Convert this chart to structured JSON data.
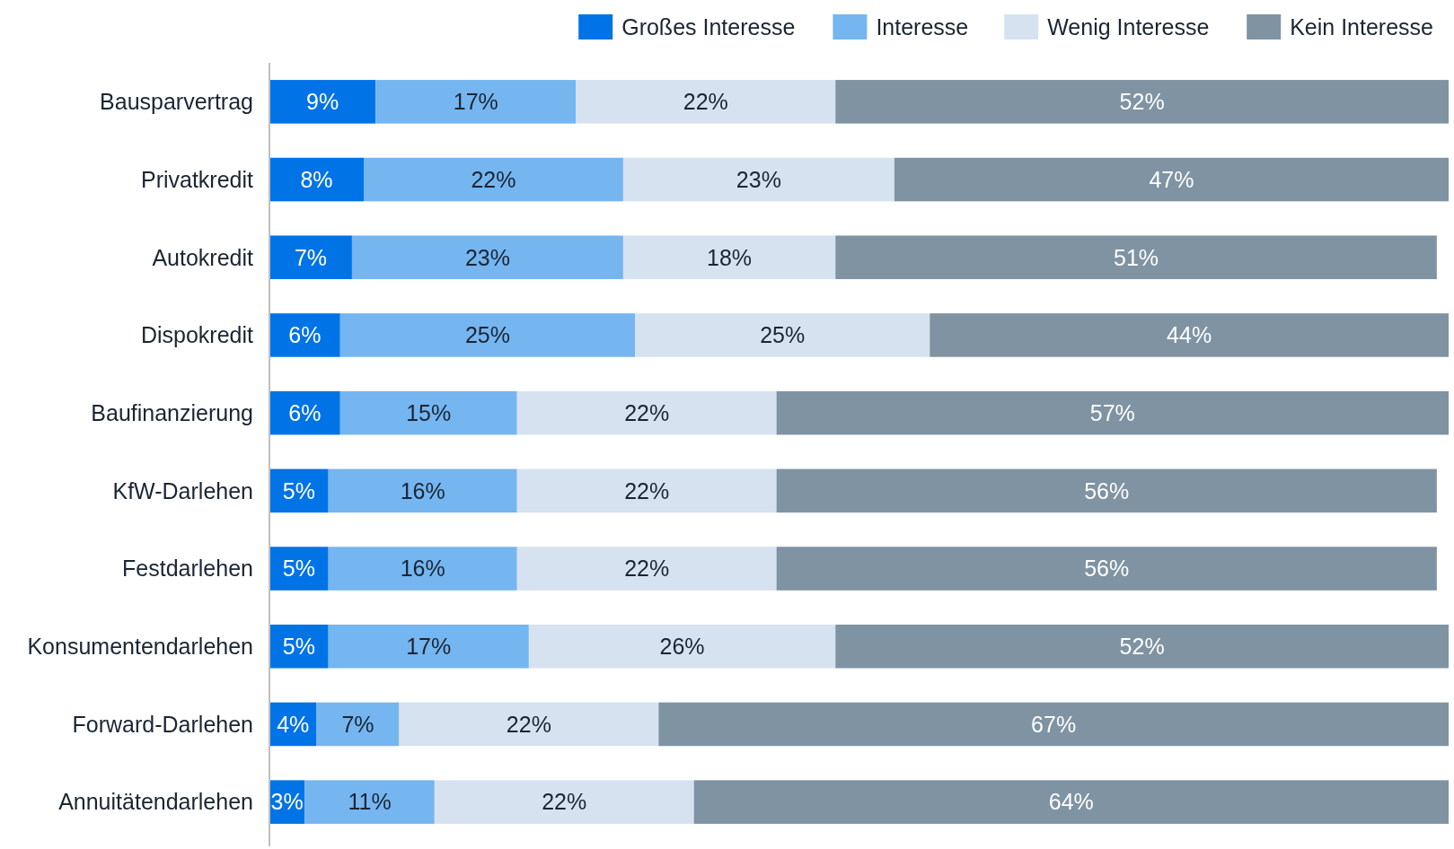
{
  "chart_data": {
    "type": "bar",
    "orientation": "horizontal",
    "stacked": true,
    "legend": "top right",
    "tick_labels": "y",
    "xlim": [
      0,
      100
    ],
    "categories": [
      "Bausparvertrag",
      "Privatkredit",
      "Autokredit",
      "Dispokredit",
      "Baufinanzierung",
      "KfW-Darlehen",
      "Festdarlehen",
      "Konsumentendarlehen",
      "Forward-Darlehen",
      "Annuitätendarlehen"
    ],
    "series": [
      {
        "name": "Großes Interesse",
        "color": "#0073e6",
        "values": [
          9,
          8,
          7,
          6,
          6,
          5,
          5,
          5,
          4,
          3
        ],
        "value_labels": [
          "9%",
          "8%",
          "7%",
          "6%",
          "6%",
          "5%",
          "5%",
          "5%",
          "4%",
          "3%"
        ]
      },
      {
        "name": "Interesse",
        "color": "#75b5f0",
        "values": [
          17,
          22,
          23,
          25,
          15,
          16,
          16,
          17,
          7,
          11
        ],
        "value_labels": [
          "17%",
          "22%",
          "23%",
          "25%",
          "15%",
          "16%",
          "16%",
          "17%",
          "7%",
          "11%"
        ]
      },
      {
        "name": "Wenig Interesse",
        "color": "#d6e2f0",
        "values": [
          22,
          23,
          18,
          25,
          22,
          22,
          22,
          26,
          22,
          22
        ],
        "value_labels": [
          "22%",
          "23%",
          "18%",
          "25%",
          "22%",
          "22%",
          "22%",
          "26%",
          "22%",
          "22%"
        ]
      },
      {
        "name": "Kein Interesse",
        "color": "#7f93a3",
        "values": [
          52,
          47,
          51,
          44,
          57,
          56,
          56,
          52,
          67,
          64
        ],
        "value_labels": [
          "52%",
          "47%",
          "51%",
          "44%",
          "57%",
          "56%",
          "56%",
          "52%",
          "67%",
          "64%"
        ]
      }
    ]
  }
}
